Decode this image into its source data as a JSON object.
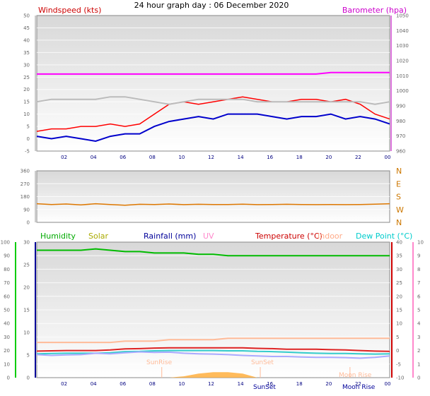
{
  "title": "24 hour graph day : 06 December 2020",
  "chart_data": [
    {
      "type": "line",
      "panel": "wind_baro",
      "left_label": "Windspeed (kts)",
      "right_label": "Barometer (hpa)",
      "left_axis": {
        "range": [
          -5,
          50
        ],
        "ticks": [
          "-5",
          "0",
          "5",
          "10",
          "15",
          "20",
          "25",
          "30",
          "35",
          "40",
          "45",
          "50"
        ]
      },
      "right_axis": {
        "range": [
          955,
          1050
        ],
        "ticks": [
          "960",
          "970",
          "980",
          "990",
          "1000",
          "1010",
          "1020",
          "1030",
          "1040",
          "1050"
        ]
      },
      "x_ticks": [
        "02",
        "04",
        "06",
        "08",
        "10",
        "12",
        "14",
        "16",
        "18",
        "20",
        "22",
        "00"
      ],
      "x_hours": [
        0,
        1,
        2,
        3,
        4,
        5,
        6,
        7,
        8,
        9,
        10,
        11,
        12,
        13,
        14,
        15,
        16,
        17,
        18,
        19,
        20,
        21,
        22,
        23,
        24
      ],
      "series": [
        {
          "name": "Windspeed (kts)",
          "color": "#ff0000",
          "axis": "left",
          "values": [
            3,
            4,
            4,
            5,
            5,
            6,
            5,
            6,
            10,
            14,
            15,
            14,
            15,
            16,
            17,
            16,
            15,
            15,
            16,
            16,
            15,
            16,
            14,
            10,
            8
          ]
        },
        {
          "name": "Barometer (hpa)",
          "color": "#ff00ff",
          "axis": "right",
          "values": [
            1009,
            1009,
            1009,
            1009,
            1009,
            1009,
            1009,
            1009,
            1009,
            1009,
            1009,
            1009,
            1009,
            1009,
            1009,
            1009,
            1009,
            1009,
            1009,
            1009,
            1010,
            1010,
            1010,
            1010,
            1010
          ]
        },
        {
          "color": "#0000cc",
          "axis": "left",
          "values": [
            1,
            0,
            1,
            0,
            -1,
            1,
            2,
            2,
            5,
            7,
            8,
            9,
            8,
            10,
            10,
            10,
            9,
            8,
            9,
            9,
            10,
            8,
            9,
            8,
            6
          ]
        },
        {
          "color": "#bbbbbb",
          "axis": "left",
          "values": [
            15,
            16,
            16,
            16,
            16,
            17,
            17,
            16,
            15,
            14,
            15,
            16,
            16,
            16,
            16,
            15,
            15,
            15,
            15,
            15,
            15,
            15,
            15,
            14,
            15
          ]
        }
      ]
    },
    {
      "type": "line",
      "panel": "wind_direction",
      "left_axis": {
        "range": [
          0,
          360
        ],
        "ticks": [
          "0",
          "45",
          "90",
          "135",
          "180",
          "225",
          "270",
          "315",
          "360"
        ]
      },
      "right_ticks": [
        "N",
        "W",
        "S",
        "E",
        "N"
      ],
      "series": [
        {
          "color": "#dd7700",
          "values": [
            130,
            125,
            128,
            122,
            130,
            125,
            120,
            126,
            125,
            128,
            124,
            126,
            125,
            125,
            127,
            124,
            125,
            126,
            125,
            124,
            125,
            124,
            125,
            127,
            130
          ]
        }
      ]
    },
    {
      "type": "line",
      "panel": "temp_humidity",
      "legend": [
        "Humidity",
        "Solar",
        "Rainfall (mm)",
        "UV",
        "Temperature (°C)",
        "Indoor",
        "Dew Point (°C)"
      ],
      "legend_colors": [
        "#00aa00",
        "#aaaa00",
        "#000099",
        "#ff88cc",
        "#cc0000",
        "#ffaa88",
        "#00cccc"
      ],
      "axis_humidity": {
        "range": [
          0,
          100
        ],
        "ticks": [
          "0",
          "10",
          "20",
          "30",
          "40",
          "50",
          "60",
          "70",
          "80",
          "90",
          "100"
        ]
      },
      "axis_rainfall": {
        "range": [
          0,
          30
        ],
        "ticks": [
          "0",
          "5",
          "10",
          "15",
          "20",
          "25",
          "30"
        ]
      },
      "axis_temperature": {
        "range": [
          -10,
          40
        ],
        "ticks": [
          "-10",
          "-5",
          "0",
          "5",
          "10",
          "15",
          "20",
          "25",
          "30",
          "35",
          "40"
        ]
      },
      "axis_uv": {
        "range": [
          0,
          10
        ],
        "ticks": [
          "0",
          "1",
          "2",
          "3",
          "4",
          "5",
          "6",
          "7",
          "8",
          "9",
          "10"
        ]
      },
      "x_ticks": [
        "02",
        "04",
        "06",
        "08",
        "10",
        "12",
        "14",
        "16",
        "18",
        "20",
        "22",
        "00"
      ],
      "annotations": [
        "SunRise",
        "SunSet",
        "Moon Rise",
        "Moon Set"
      ],
      "series": [
        {
          "name": "Humidity",
          "color": "#00bb00",
          "axis": "humidity",
          "values": [
            94,
            94,
            94,
            94,
            95,
            94,
            93,
            93,
            92,
            92,
            92,
            91,
            91,
            90,
            90,
            90,
            90,
            90,
            90,
            90,
            90,
            90,
            90,
            90,
            90
          ]
        },
        {
          "name": "Indoor",
          "color": "#ffbb99",
          "axis": "temperature",
          "values": [
            3,
            3,
            3,
            3,
            3,
            3,
            3.5,
            3.5,
            3.5,
            4,
            4,
            4,
            4,
            4.5,
            4.5,
            4.5,
            4.5,
            4.5,
            4.5,
            4.5,
            4.5,
            4.5,
            4.5,
            4.5,
            4.5
          ]
        },
        {
          "name": "Temperature (°C)",
          "color": "#dd2222",
          "axis": "temperature",
          "values": [
            -0.2,
            -0.1,
            0,
            0,
            0,
            0.2,
            0.6,
            0.7,
            0.9,
            1,
            1,
            1,
            1,
            1,
            1,
            0.8,
            0.7,
            0.5,
            0.5,
            0.5,
            0.3,
            0.2,
            0,
            -0.2,
            -0.3
          ]
        },
        {
          "name": "Dew Point (°C)",
          "color": "#33cccc",
          "axis": "temperature",
          "values": [
            -1.2,
            -1.1,
            -1,
            -1,
            -1,
            -0.8,
            -0.4,
            -0.3,
            -0.1,
            0,
            0,
            0,
            0,
            -0.1,
            -0.1,
            -0.3,
            -0.4,
            -0.6,
            -0.8,
            -1,
            -1.1,
            -1.1,
            -1.2,
            -1.3,
            -1.2
          ]
        },
        {
          "color": "#aaaaff",
          "axis": "temperature",
          "values": [
            -1.5,
            -1.8,
            -1.6,
            -1.5,
            -1,
            -1.2,
            -0.8,
            -0.5,
            -0.7,
            -0.6,
            -1,
            -1.2,
            -1.3,
            -1.5,
            -1.8,
            -2,
            -2.2,
            -2.2,
            -2.4,
            -2.5,
            -2.5,
            -2.6,
            -2.8,
            -2.5,
            -2
          ]
        },
        {
          "name": "Solar",
          "color": "#ffaa33",
          "axis": "humidity",
          "values": [
            0,
            0,
            0,
            0,
            0,
            0,
            0,
            0,
            0,
            0,
            1,
            3,
            4,
            4,
            3,
            0,
            0,
            0,
            0,
            0,
            0,
            0,
            0,
            0,
            0
          ]
        }
      ]
    }
  ]
}
